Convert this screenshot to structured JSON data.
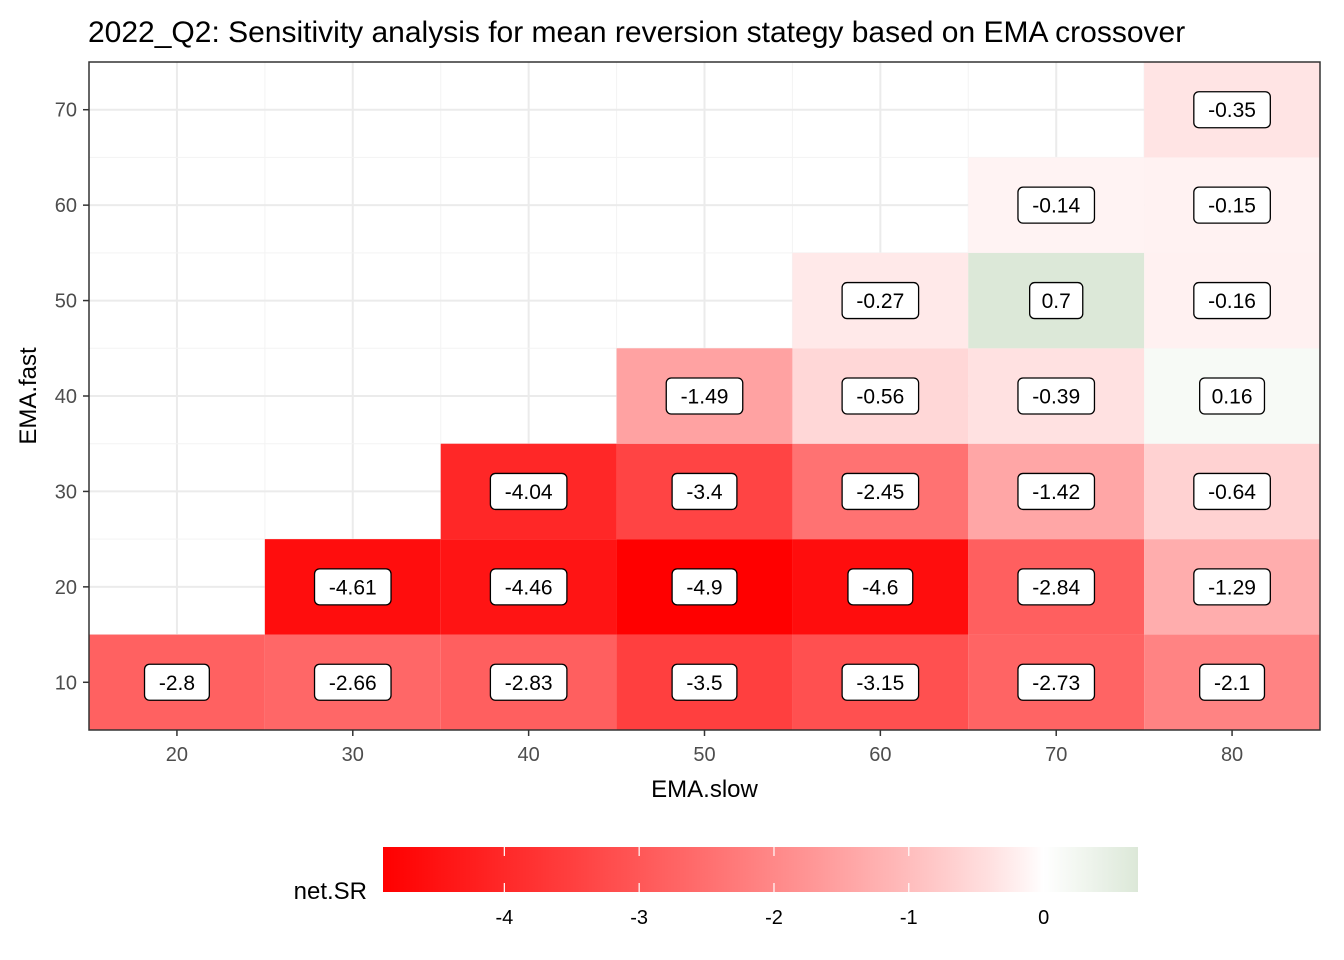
{
  "chart_data": {
    "type": "heatmap",
    "title": "2022_Q2: Sensitivity analysis for mean reversion stategy based on EMA crossover",
    "xlabel": "EMA.slow",
    "ylabel": "EMA.fast",
    "x_ticks": [
      20,
      30,
      40,
      50,
      60,
      70,
      80
    ],
    "y_ticks": [
      10,
      20,
      30,
      40,
      50,
      60,
      70
    ],
    "xlim": [
      15,
      85
    ],
    "ylim": [
      5,
      75
    ],
    "grid": true,
    "cells": [
      {
        "slow": 20,
        "fast": 10,
        "value": -2.8
      },
      {
        "slow": 30,
        "fast": 10,
        "value": -2.66
      },
      {
        "slow": 40,
        "fast": 10,
        "value": -2.83
      },
      {
        "slow": 50,
        "fast": 10,
        "value": -3.5
      },
      {
        "slow": 60,
        "fast": 10,
        "value": -3.15
      },
      {
        "slow": 70,
        "fast": 10,
        "value": -2.73
      },
      {
        "slow": 80,
        "fast": 10,
        "value": -2.1
      },
      {
        "slow": 30,
        "fast": 20,
        "value": -4.61
      },
      {
        "slow": 40,
        "fast": 20,
        "value": -4.46
      },
      {
        "slow": 50,
        "fast": 20,
        "value": -4.9
      },
      {
        "slow": 60,
        "fast": 20,
        "value": -4.6
      },
      {
        "slow": 70,
        "fast": 20,
        "value": -2.84
      },
      {
        "slow": 80,
        "fast": 20,
        "value": -1.29
      },
      {
        "slow": 40,
        "fast": 30,
        "value": -4.04
      },
      {
        "slow": 50,
        "fast": 30,
        "value": -3.4
      },
      {
        "slow": 60,
        "fast": 30,
        "value": -2.45
      },
      {
        "slow": 70,
        "fast": 30,
        "value": -1.42
      },
      {
        "slow": 80,
        "fast": 30,
        "value": -0.64
      },
      {
        "slow": 50,
        "fast": 40,
        "value": -1.49
      },
      {
        "slow": 60,
        "fast": 40,
        "value": -0.56
      },
      {
        "slow": 70,
        "fast": 40,
        "value": -0.39
      },
      {
        "slow": 80,
        "fast": 40,
        "value": 0.16
      },
      {
        "slow": 60,
        "fast": 50,
        "value": -0.27
      },
      {
        "slow": 70,
        "fast": 50,
        "value": 0.7
      },
      {
        "slow": 80,
        "fast": 50,
        "value": -0.16
      },
      {
        "slow": 70,
        "fast": 60,
        "value": -0.14
      },
      {
        "slow": 80,
        "fast": 60,
        "value": -0.15
      },
      {
        "slow": 80,
        "fast": 70,
        "value": -0.35
      }
    ],
    "color_scale": {
      "low_color": "#ff0000",
      "mid_color": "#ffffff",
      "high_color": "#dce8d8",
      "midpoint": 0,
      "min": -4.9,
      "max": 0.7
    },
    "legend": {
      "title": "net.SR",
      "position": "bottom",
      "ticks": [
        -4,
        -3,
        -2,
        -1,
        0
      ]
    }
  }
}
